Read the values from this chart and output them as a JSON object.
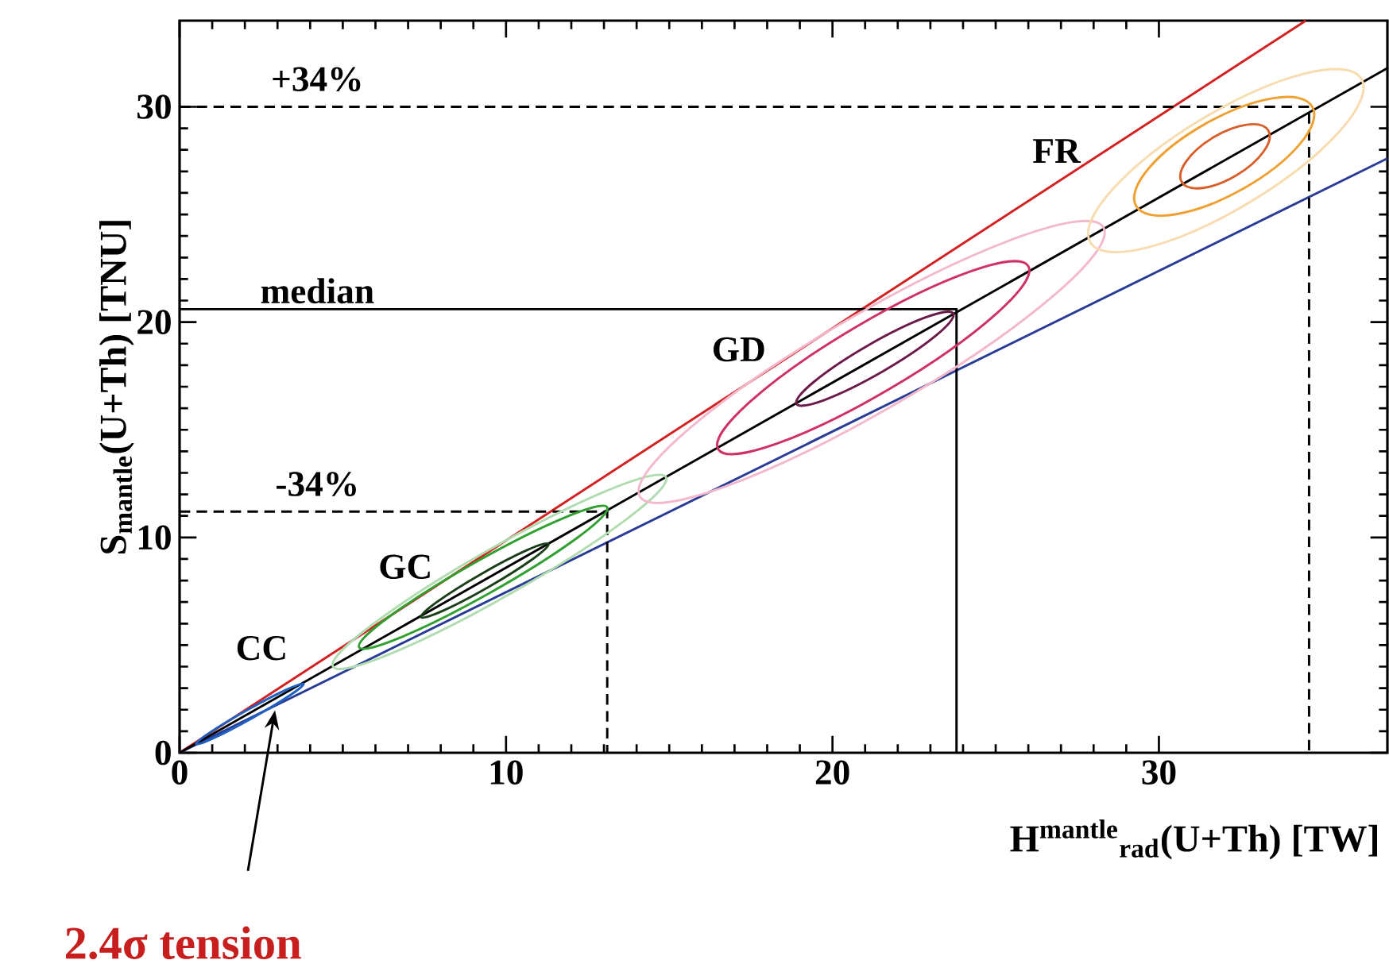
{
  "chart_data": {
    "type": "line",
    "xlabel": "H$^{mantle}$$_{rad}$(U+Th) [TW]",
    "ylabel": "S$_{mantle}$(U+Th) [TNU]",
    "xlim": [
      0,
      37
    ],
    "ylim": [
      0,
      34
    ],
    "xticks": [
      0,
      10,
      20,
      30
    ],
    "yticks": [
      0,
      10,
      20,
      30
    ],
    "grid": false,
    "marker": "none",
    "series": [
      {
        "color": "#d42020",
        "x": [
          0,
          34.5
        ],
        "values": [
          0,
          34
        ]
      },
      {
        "color": "#283c96",
        "x": [
          0,
          37
        ],
        "values": [
          0,
          27.6
        ]
      },
      {
        "color": "#000000",
        "x": [
          0,
          37
        ],
        "values": [
          0,
          31.8
        ]
      },
      {
        "type": "step",
        "color": "#000000",
        "line_style": "dashed",
        "x": [
          0,
          13.1
        ],
        "values": [
          11.2,
          0
        ]
      },
      {
        "type": "step",
        "color": "#000000",
        "line_style": "solid",
        "x": [
          0,
          23.8
        ],
        "values": [
          20.6,
          0
        ]
      },
      {
        "type": "step",
        "color": "#000000",
        "line_style": "dashed",
        "x": [
          0,
          34.6
        ],
        "values": [
          30.0,
          0
        ]
      }
    ],
    "annotations": [
      "CC",
      "GC",
      "GD",
      "FR",
      "-34%",
      "median",
      "+34%",
      "2.4σ tension"
    ]
  }
}
